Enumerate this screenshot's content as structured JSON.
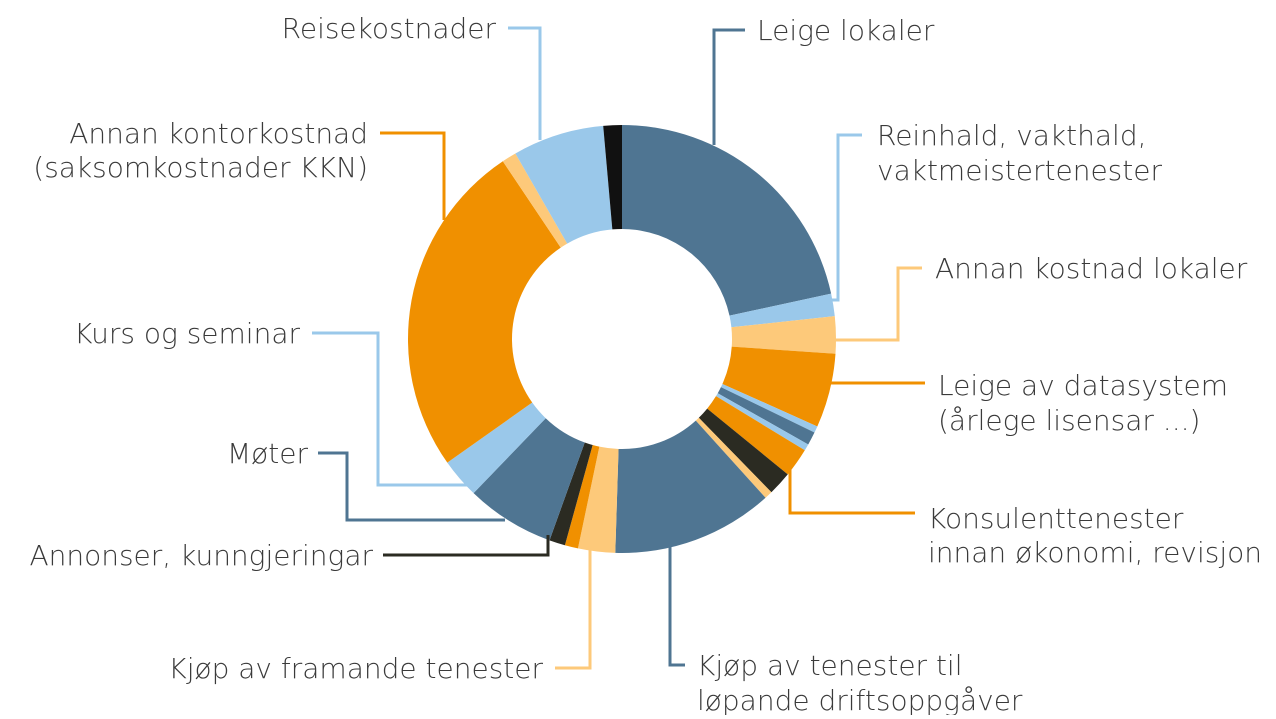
{
  "chart_data": {
    "type": "donut",
    "categories": [
      [
        "Leige lokaler"
      ],
      [
        "Reinhald, vakthald,",
        "vaktmeistertenester"
      ],
      [
        "Annan kostnad lokaler"
      ],
      [
        "Leige av datasystem",
        "(årlege lisensar ...)"
      ],
      null,
      null,
      null,
      [
        "Konsulenttenester",
        "innan økonomi, revisjon"
      ],
      null,
      null,
      [
        "Kjøp av tenester til",
        "løpande driftsoppgåver"
      ],
      [
        "Kjøp av framande tenester"
      ],
      null,
      [
        "Annonser, kunngjeringar"
      ],
      [
        "Møter"
      ],
      [
        "Kurs og seminar"
      ],
      [
        "Annan kontorkostnad",
        "(saksomkostnader KKN)"
      ],
      null,
      [
        "Reisekostnader"
      ],
      null
    ],
    "values": [
      21.6,
      1.7,
      2.8,
      5.6,
      0.5,
      1,
      0.5,
      2.2,
      1.8,
      0.6,
      12.2,
      2.8,
      1,
      1.2,
      6.7,
      3,
      25.4,
      1.1,
      6.9,
      1.4
    ],
    "colors": [
      "#4f7592",
      "#9ac8ea",
      "#fdc97a",
      "#f09000",
      "#9ac8ea",
      "#4f7592",
      "#9ac8ea",
      "#f09000",
      "#2b2b22",
      "#fdc97a",
      "#4f7592",
      "#fdc97a",
      "#f09000",
      "#2b2b22",
      "#4f7592",
      "#9ac8ea",
      "#f09000",
      "#fdc97a",
      "#9ac8ea",
      "#111111"
    ]
  }
}
